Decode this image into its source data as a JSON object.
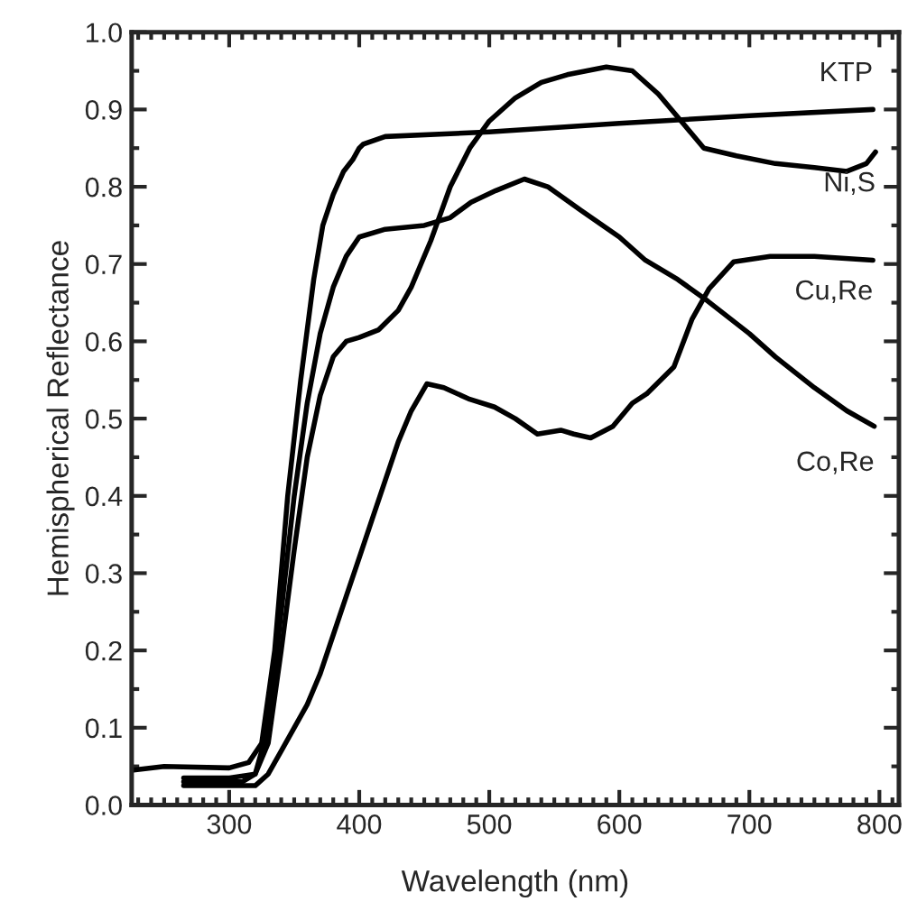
{
  "chart_data": {
    "type": "line",
    "xlabel": "Wavelength (nm)",
    "ylabel": "Hemispherical Reflectance",
    "xlim": [
      225,
      815
    ],
    "xticks": [
      300,
      400,
      500,
      600,
      700,
      800
    ],
    "ylim": [
      0.0,
      1.0
    ],
    "yticks": [
      {
        "value": 0.0,
        "label": "0.0"
      },
      0.1,
      0.2,
      0.3,
      0.4,
      0.5,
      0.6,
      0.7,
      0.8,
      0.9,
      {
        "value": 1.0,
        "label": "1.0"
      }
    ],
    "grid": false,
    "legend": false,
    "marker": "none",
    "line_style": "solid",
    "series": [
      {
        "name": "KTP",
        "color": "#000000",
        "x": [
          225,
          250,
          300,
          315,
          325,
          335,
          345,
          355,
          365,
          372,
          380,
          388,
          395,
          400,
          403,
          420,
          500,
          600,
          700,
          795
        ],
        "values": [
          0.045,
          0.05,
          0.048,
          0.055,
          0.08,
          0.2,
          0.4,
          0.55,
          0.68,
          0.75,
          0.79,
          0.82,
          0.835,
          0.85,
          0.855,
          0.865,
          0.871,
          0.882,
          0.892,
          0.9
        ]
      },
      {
        "name": "Ni,S",
        "color": "#000000",
        "x": [
          265,
          300,
          320,
          330,
          340,
          350,
          360,
          370,
          380,
          390,
          400,
          415,
          430,
          440,
          455,
          470,
          485,
          500,
          520,
          540,
          560,
          590,
          610,
          630,
          650,
          665,
          690,
          720,
          750,
          775,
          790,
          797
        ],
        "values": [
          0.035,
          0.035,
          0.04,
          0.08,
          0.2,
          0.33,
          0.45,
          0.53,
          0.58,
          0.6,
          0.605,
          0.615,
          0.64,
          0.67,
          0.73,
          0.8,
          0.85,
          0.885,
          0.915,
          0.935,
          0.945,
          0.955,
          0.95,
          0.92,
          0.88,
          0.85,
          0.84,
          0.83,
          0.825,
          0.82,
          0.83,
          0.845
        ]
      },
      {
        "name": "Cu,Re",
        "color": "#000000",
        "x": [
          265,
          320,
          330,
          340,
          350,
          360,
          370,
          380,
          390,
          400,
          410,
          420,
          430,
          440,
          452,
          465,
          485,
          504,
          520,
          537,
          555,
          565,
          578,
          595,
          610,
          621,
          642,
          656,
          669,
          688,
          716,
          750,
          795
        ],
        "values": [
          0.025,
          0.025,
          0.04,
          0.07,
          0.1,
          0.13,
          0.17,
          0.22,
          0.27,
          0.32,
          0.37,
          0.42,
          0.47,
          0.51,
          0.545,
          0.54,
          0.525,
          0.515,
          0.5,
          0.48,
          0.485,
          0.48,
          0.475,
          0.49,
          0.52,
          0.532,
          0.567,
          0.629,
          0.668,
          0.703,
          0.71,
          0.71,
          0.705
        ]
      },
      {
        "name": "Co,Re",
        "color": "#000000",
        "x": [
          265,
          310,
          320,
          330,
          340,
          350,
          360,
          370,
          380,
          390,
          400,
          420,
          450,
          470,
          486,
          505,
          527,
          545,
          570,
          600,
          620,
          645,
          668,
          700,
          720,
          750,
          775,
          796
        ],
        "values": [
          0.03,
          0.03,
          0.04,
          0.1,
          0.25,
          0.4,
          0.52,
          0.61,
          0.67,
          0.71,
          0.735,
          0.745,
          0.75,
          0.76,
          0.78,
          0.795,
          0.81,
          0.8,
          0.77,
          0.735,
          0.705,
          0.68,
          0.652,
          0.61,
          0.58,
          0.54,
          0.51,
          0.49
        ]
      }
    ]
  }
}
